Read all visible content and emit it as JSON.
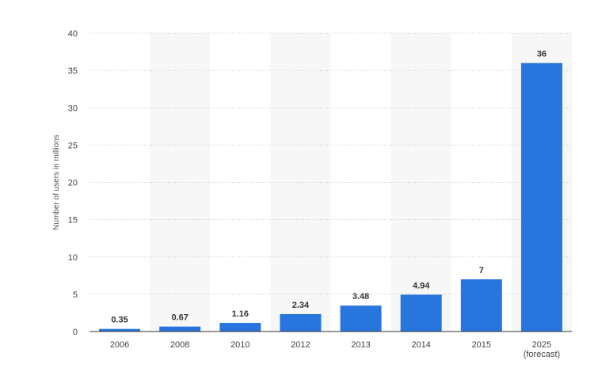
{
  "chart_data": {
    "type": "bar",
    "categories": [
      "2006",
      "2008",
      "2010",
      "2012",
      "2013",
      "2014",
      "2015",
      "2025\n(forecast)"
    ],
    "values": [
      0.35,
      0.67,
      1.16,
      2.34,
      3.48,
      4.94,
      7,
      36
    ],
    "value_labels": [
      "0.35",
      "0.67",
      "1.16",
      "2.34",
      "3.48",
      "4.94",
      "7",
      "36"
    ],
    "ylabel": "Number of users in millions",
    "ylim": [
      0,
      40
    ],
    "yticks": [
      0,
      5,
      10,
      15,
      20,
      25,
      30,
      35,
      40
    ],
    "grid": true,
    "bar_color": "#2876dd",
    "band_color": "#f7f7f7",
    "grid_color": "#c8c8c8"
  }
}
